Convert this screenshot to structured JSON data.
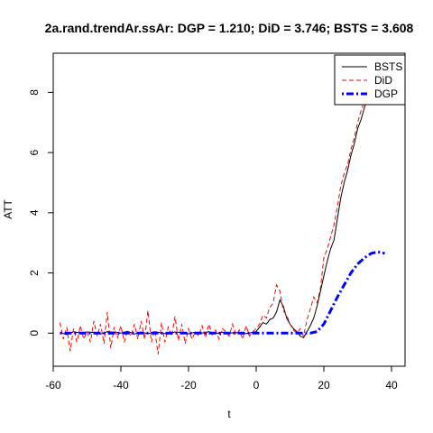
{
  "chart_data": {
    "type": "line",
    "title": "2a.rand.trendAr.ssAr: DGP = 1.210; DiD = 3.746;  BSTS = 3.608",
    "xlabel": "t",
    "ylabel": "ATT",
    "xlim": [
      -60,
      44
    ],
    "ylim": [
      -1.1,
      9.3
    ],
    "xticks": [
      -60,
      -40,
      -20,
      0,
      20,
      40
    ],
    "yticks": [
      0,
      2,
      4,
      6,
      8
    ],
    "legend_position": "top-right",
    "series": [
      {
        "name": "BSTS",
        "color": "#000000",
        "line_style": "solid",
        "x": [
          -58,
          -56,
          -54,
          -52,
          -50,
          -48,
          -46,
          -44,
          -42,
          -40,
          -38,
          -36,
          -34,
          -32,
          -30,
          -28,
          -26,
          -24,
          -22,
          -20,
          -18,
          -16,
          -14,
          -12,
          -10,
          -8,
          -6,
          -4,
          -2,
          0,
          1,
          2,
          3,
          4,
          5,
          6,
          7,
          8,
          9,
          10,
          11,
          12,
          13,
          14,
          15,
          16,
          17,
          18,
          19,
          20,
          21,
          22,
          23,
          24,
          25,
          26,
          27,
          28,
          29,
          30,
          31,
          32,
          33,
          34
        ],
        "y": [
          0.02,
          -0.05,
          0.05,
          0.0,
          0.04,
          0.02,
          -0.03,
          0.05,
          0.03,
          0.0,
          0.06,
          -0.03,
          0.04,
          -0.02,
          0.05,
          0.0,
          -0.03,
          0.04,
          0.02,
          -0.02,
          0.03,
          0.0,
          0.05,
          -0.02,
          0.03,
          0.0,
          0.02,
          -0.03,
          0.0,
          0.05,
          0.2,
          0.35,
          0.3,
          0.45,
          0.5,
          0.7,
          1.1,
          0.9,
          0.5,
          0.3,
          0.15,
          0.05,
          -0.1,
          -0.15,
          0.05,
          0.25,
          0.5,
          0.9,
          1.4,
          1.9,
          2.4,
          2.8,
          3.1,
          3.8,
          4.5,
          5.0,
          5.4,
          5.9,
          6.3,
          6.8,
          7.1,
          7.5,
          7.8,
          8.2
        ]
      },
      {
        "name": "DiD",
        "color": "#ff0000",
        "line_style": "dashed",
        "x": [
          -58,
          -57,
          -56,
          -55,
          -54,
          -53,
          -52,
          -51,
          -50,
          -49,
          -48,
          -47,
          -46,
          -45,
          -44,
          -43,
          -42,
          -41,
          -40,
          -39,
          -38,
          -37,
          -36,
          -35,
          -34,
          -33,
          -32,
          -31,
          -30,
          -29,
          -28,
          -27,
          -26,
          -25,
          -24,
          -23,
          -22,
          -21,
          -20,
          -19,
          -18,
          -17,
          -16,
          -15,
          -14,
          -13,
          -12,
          -11,
          -10,
          -9,
          -8,
          -7,
          -6,
          -5,
          -4,
          -3,
          -2,
          -1,
          0,
          1,
          2,
          3,
          4,
          5,
          6,
          7,
          8,
          9,
          10,
          11,
          12,
          13,
          14,
          15,
          16,
          17,
          18,
          19,
          20,
          21,
          22,
          23,
          24,
          25,
          26,
          27,
          28,
          29,
          30,
          31,
          32,
          33,
          34
        ],
        "y": [
          0.35,
          -0.2,
          0.2,
          -0.6,
          0.15,
          -0.3,
          0.25,
          -0.2,
          0.05,
          -0.3,
          0.4,
          -0.1,
          0.3,
          -0.35,
          0.7,
          -0.5,
          0.2,
          -0.15,
          0.25,
          -0.3,
          0.1,
          -0.1,
          0.3,
          -0.2,
          0.4,
          -0.2,
          0.75,
          -0.3,
          0.1,
          -0.7,
          0.35,
          -0.3,
          0.2,
          -0.1,
          0.55,
          -0.25,
          0.3,
          -0.35,
          0.15,
          -0.2,
          0.05,
          -0.1,
          0.25,
          -0.15,
          0.3,
          -0.05,
          0.1,
          -0.2,
          0.15,
          0.05,
          -0.1,
          0.3,
          -0.05,
          0.1,
          -0.2,
          0.25,
          -0.1,
          0.05,
          0.15,
          0.3,
          0.6,
          0.5,
          0.85,
          1.0,
          1.6,
          1.4,
          0.75,
          0.6,
          0.3,
          0.1,
          0.0,
          0.15,
          -0.1,
          0.45,
          0.8,
          1.2,
          1.0,
          1.5,
          2.5,
          2.8,
          3.2,
          3.6,
          4.2,
          4.9,
          5.3,
          5.6,
          6.1,
          6.5,
          7.0,
          7.4,
          7.7,
          8.0,
          8.5
        ]
      },
      {
        "name": "DGP",
        "color": "#0000ff",
        "line_style": "dotdash",
        "x": [
          -58,
          -50,
          -40,
          -30,
          -20,
          -10,
          0,
          10,
          16,
          18,
          20,
          22,
          24,
          26,
          28,
          30,
          32,
          34,
          36,
          38
        ],
        "y": [
          0,
          0,
          0,
          0,
          0,
          0,
          0,
          0,
          0,
          0.05,
          0.3,
          0.75,
          1.2,
          1.6,
          2.0,
          2.3,
          2.5,
          2.65,
          2.7,
          2.65
        ]
      }
    ]
  }
}
